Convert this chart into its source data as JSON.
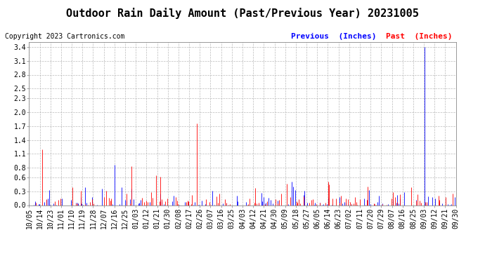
{
  "title": "Outdoor Rain Daily Amount (Past/Previous Year) 20231005",
  "copyright": "Copyright 2023 Cartronics.com",
  "legend_previous": "Previous  (Inches)",
  "legend_past": "Past  (Inches)",
  "legend_previous_color": "#0000ff",
  "legend_past_color": "#ff0000",
  "yticks": [
    0.0,
    0.3,
    0.6,
    0.8,
    1.1,
    1.4,
    1.7,
    2.0,
    2.3,
    2.5,
    2.8,
    3.1,
    3.4
  ],
  "ylim": [
    0.0,
    3.5
  ],
  "background_color": "#ffffff",
  "grid_color": "#aaaaaa",
  "title_fontsize": 11,
  "copyright_fontsize": 7,
  "legend_fontsize": 8,
  "tick_fontsize": 7,
  "past_color": "#ff0000",
  "previous_color": "#0000ff",
  "xtick_labels": [
    "10/05",
    "10/14",
    "10/23",
    "11/01",
    "11/10",
    "11/19",
    "11/28",
    "12/07",
    "12/16",
    "12/25",
    "01/03",
    "01/12",
    "01/21",
    "01/30",
    "02/08",
    "02/17",
    "02/26",
    "03/07",
    "03/16",
    "03/25",
    "04/03",
    "04/12",
    "04/21",
    "04/30",
    "05/09",
    "05/18",
    "05/27",
    "06/05",
    "06/14",
    "06/23",
    "07/02",
    "07/11",
    "07/20",
    "07/29",
    "08/07",
    "08/16",
    "08/25",
    "09/03",
    "09/12",
    "09/21",
    "09/30"
  ],
  "n_days": 365,
  "prev_seed": 10,
  "past_seed": 20,
  "prev_big_day": 337,
  "prev_big_val": 3.4,
  "past_big_day": 143,
  "past_big_val": 1.75,
  "past_med_day": 87,
  "past_med_val": 0.83,
  "prev_med_day": 73,
  "prev_med_val": 0.87
}
